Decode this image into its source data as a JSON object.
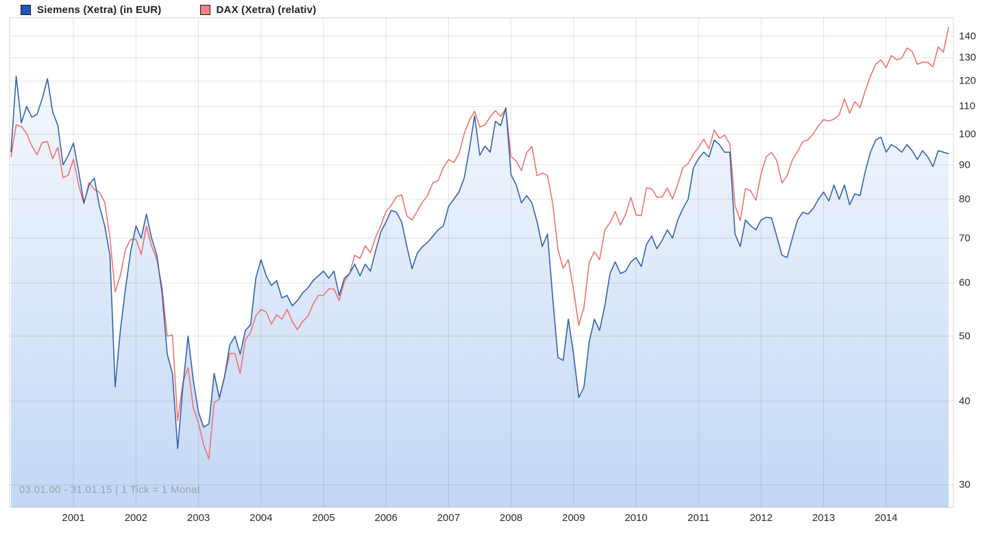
{
  "legend": [
    {
      "label": "Siemens (Xetra) (in EUR)",
      "swatch_color": "#2256c0"
    },
    {
      "label": "DAX (Xetra) (relativ)",
      "swatch_color": "#f88080"
    }
  ],
  "footer_note": "03.01.00 - 31.01.15 | 1 Tick = 1 Monat",
  "chart_data": {
    "type": "line",
    "title": "Siemens (Xetra) vs DAX (Xetra) relative performance",
    "x_start": "2000-01",
    "x_end": "2015-01",
    "tick_interval": "1 month",
    "y_scale": "log",
    "ylim": [
      27.5,
      148.5
    ],
    "grid": true,
    "legend_position": "top-left",
    "x_tick_labels": [
      "2001",
      "2002",
      "2003",
      "2004",
      "2005",
      "2006",
      "2007",
      "2008",
      "2009",
      "2010",
      "2011",
      "2012",
      "2013",
      "2014"
    ],
    "y_tick_labels": [
      140,
      130,
      120,
      110,
      100,
      90,
      80,
      70,
      60,
      50,
      40,
      30
    ],
    "colors": {
      "siemens_line": "#3162ad",
      "dax_line": "#f07070",
      "fill_top": "#fcfdff",
      "fill_bottom": "#c3d7f5",
      "gridline": "rgba(0,0,0,0.11)",
      "border": "rgba(0,0,0,0.16)"
    },
    "series": [
      {
        "name": "Siemens (Xetra) (in EUR)",
        "unit": "EUR",
        "area_fill": true,
        "values": [
          94,
          122,
          104,
          110,
          106,
          107,
          113,
          121,
          108,
          103,
          90,
          93,
          97,
          88,
          79,
          84,
          86,
          78,
          73,
          66,
          42,
          51,
          59,
          67,
          73,
          70,
          76,
          70,
          66,
          58,
          47,
          44,
          34,
          42,
          50,
          43,
          38.5,
          36.6,
          37,
          44,
          40.5,
          43.5,
          48.5,
          50,
          47,
          51,
          52,
          61,
          65,
          61.5,
          59.5,
          60.5,
          57,
          57.5,
          55.5,
          56.5,
          58,
          59,
          60.5,
          61.5,
          62.5,
          61,
          62.5,
          57.5,
          61,
          62,
          64,
          61.5,
          64,
          62.5,
          67,
          71.5,
          74,
          77,
          76.5,
          74,
          68,
          63,
          66.5,
          68,
          69,
          70.5,
          72,
          73,
          78,
          80,
          82,
          86,
          95,
          106.5,
          93,
          96,
          94,
          104.5,
          103,
          109.5,
          87,
          84,
          79,
          81,
          79,
          74,
          68,
          71,
          57,
          46.5,
          46,
          53,
          47,
          40.5,
          42,
          49,
          53,
          51,
          55.5,
          62,
          64.5,
          62,
          62.5,
          64.5,
          65.5,
          63.5,
          68.5,
          70.5,
          67.5,
          69.5,
          72,
          70,
          74.5,
          77.5,
          80,
          89,
          92,
          94,
          92.5,
          98,
          96.5,
          94,
          94,
          71,
          68,
          74.5,
          73,
          72,
          74.5,
          75.2,
          75,
          70.5,
          66,
          65.5,
          70,
          74.5,
          76.5,
          76,
          77.5,
          80,
          82,
          79.5,
          84,
          80,
          84,
          78.5,
          81.5,
          81,
          88,
          94,
          98,
          99,
          94,
          96.5,
          95.5,
          94,
          96.5,
          94.5,
          91.7,
          94.5,
          92.5,
          89.5,
          94.5,
          94,
          93.5
        ]
      },
      {
        "name": "DAX (Xetra) (relativ)",
        "unit": "relative (indexed to Siemens at 03.01.00)",
        "area_fill": false,
        "values": [
          92.4,
          103.3,
          102.7,
          100.2,
          96.1,
          93.2,
          97.2,
          97.5,
          91.9,
          95.6,
          86.1,
          86.9,
          91.8,
          83.9,
          78.8,
          84.7,
          82.7,
          81.9,
          79.2,
          70.1,
          58.2,
          61.6,
          67.4,
          69.7,
          69.7,
          66.2,
          72.9,
          68.1,
          65.1,
          59.2,
          50.0,
          50.2,
          37.4,
          42.6,
          44.9,
          39.1,
          37.1,
          34.4,
          32.8,
          39.8,
          40.3,
          43.5,
          47.1,
          47.1,
          44.0,
          49.4,
          50.6,
          53.6,
          54.8,
          54.3,
          52.1,
          53.8,
          53.0,
          54.8,
          52.6,
          51.1,
          52.6,
          53.5,
          55.8,
          57.5,
          57.5,
          58.8,
          58.8,
          56.5,
          60.3,
          62.0,
          66.0,
          65.3,
          68.2,
          66.6,
          70.2,
          73.1,
          76.7,
          78.3,
          80.7,
          81.2,
          75.5,
          74.5,
          76.8,
          79.2,
          81.1,
          84.7,
          85.3,
          89.1,
          91.7,
          90.7,
          93.5,
          100.1,
          104.9,
          108.2,
          102.5,
          103.2,
          106.2,
          108.4,
          106.3,
          109.0,
          92.6,
          91.2,
          88.3,
          93.9,
          95.9,
          86.7,
          87.5,
          86.8,
          78.8,
          67.4,
          63.1,
          65.0,
          58.6,
          51.9,
          55.2,
          64.4,
          66.8,
          65.0,
          72.0,
          73.8,
          76.7,
          73.2,
          76.0,
          80.5,
          75.8,
          75.6,
          83.2,
          82.9,
          80.6,
          80.6,
          83.1,
          80.1,
          84.2,
          89.2,
          90.4,
          93.4,
          95.6,
          98.3,
          95.1,
          101.5,
          98.6,
          99.7,
          96.7,
          78.2,
          74.3,
          83.0,
          82.3,
          79.7,
          87.3,
          92.6,
          93.9,
          91.4,
          84.6,
          86.7,
          91.5,
          94.2,
          97.5,
          98.1,
          100.1,
          102.9,
          105.1,
          104.6,
          105.3,
          106.9,
          112.8,
          107.5,
          111.8,
          109.5,
          116.1,
          122.1,
          127.1,
          129.1,
          125.7,
          131.0,
          129.1,
          129.8,
          134.4,
          132.9,
          127.1,
          128.0,
          128.0,
          126.0,
          134.9,
          132.5,
          144.5
        ]
      }
    ]
  }
}
